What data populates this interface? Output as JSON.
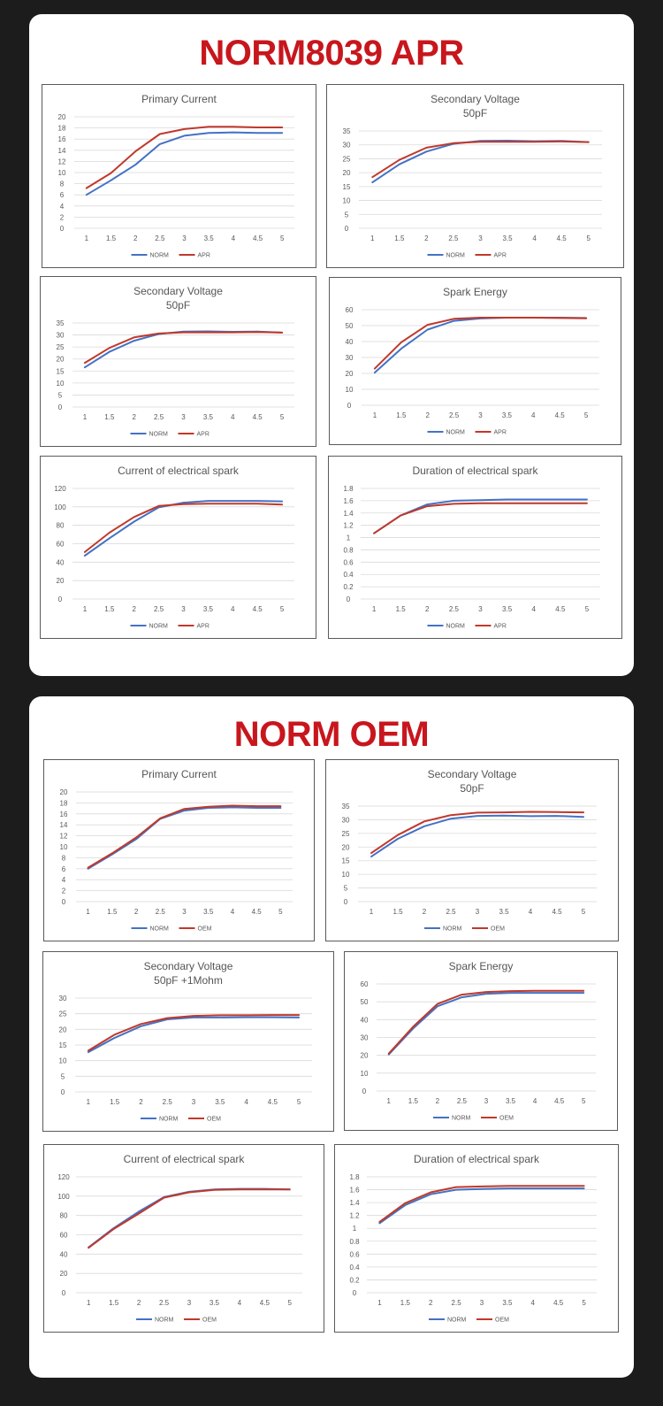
{
  "colors": {
    "norm": "#4472c4",
    "other": "#c0392b",
    "title": "#c8161d"
  },
  "sections": [
    {
      "title": "NORM8039 APR"
    },
    {
      "title": "NORM OEM"
    }
  ],
  "chart_data": [
    {
      "type": "line",
      "section": 0,
      "id": "s1-primary-current",
      "title": "Primary Current",
      "subtitle": "",
      "categories": [
        "1",
        "1.5",
        "2",
        "2.5",
        "3",
        "3.5",
        "4",
        "4.5",
        "5"
      ],
      "ylim": [
        0,
        20
      ],
      "ystep": 2,
      "ylabels": [
        "0",
        "2",
        "4",
        "6",
        "8",
        "10",
        "12",
        "14",
        "16",
        "18",
        "20"
      ],
      "series": [
        {
          "name": "NORM",
          "values": [
            6,
            8.6,
            11.4,
            15.1,
            16.6,
            17.1,
            17.2,
            17.1,
            17.1
          ]
        },
        {
          "name": "APR",
          "values": [
            7.2,
            9.9,
            13.8,
            16.9,
            17.8,
            18.2,
            18.2,
            18.1,
            18.1
          ]
        }
      ]
    },
    {
      "type": "line",
      "section": 0,
      "id": "s1-secondary-voltage-a",
      "title": "Secondary Voltage",
      "subtitle": "50pF",
      "categories": [
        "1",
        "1.5",
        "2",
        "2.5",
        "3",
        "3.5",
        "4",
        "4.5",
        "5"
      ],
      "ylim": [
        0,
        35
      ],
      "ystep": 5,
      "ylabels": [
        "0",
        "5",
        "10",
        "15",
        "20",
        "25",
        "30",
        "35"
      ],
      "series": [
        {
          "name": "NORM",
          "values": [
            16.5,
            23,
            27.6,
            30.4,
            31.4,
            31.5,
            31.3,
            31.4,
            31
          ]
        },
        {
          "name": "APR",
          "values": [
            18.4,
            24.6,
            29,
            30.6,
            31.1,
            31.1,
            31.1,
            31.2,
            31
          ]
        }
      ]
    },
    {
      "type": "line",
      "section": 0,
      "id": "s1-secondary-voltage-b",
      "title": "Secondary Voltage",
      "subtitle": "50pF",
      "categories": [
        "1",
        "1.5",
        "2",
        "2.5",
        "3",
        "3.5",
        "4",
        "4.5",
        "5"
      ],
      "ylim": [
        0,
        35
      ],
      "ystep": 5,
      "ylabels": [
        "0",
        "5",
        "10",
        "15",
        "20",
        "25",
        "30",
        "35"
      ],
      "series": [
        {
          "name": "NORM",
          "values": [
            16.5,
            23,
            27.6,
            30.4,
            31.4,
            31.5,
            31.3,
            31.4,
            31
          ]
        },
        {
          "name": "APR",
          "values": [
            18.4,
            24.6,
            29,
            30.6,
            31.1,
            31.1,
            31.1,
            31.2,
            31
          ]
        }
      ]
    },
    {
      "type": "line",
      "section": 0,
      "id": "s1-spark-energy",
      "title": "Spark Energy",
      "subtitle": "",
      "categories": [
        "1",
        "1.5",
        "2",
        "2.5",
        "3",
        "3.5",
        "4",
        "4.5",
        "5"
      ],
      "ylim": [
        0,
        60
      ],
      "ystep": 10,
      "ylabels": [
        "0",
        "10",
        "20",
        "30",
        "40",
        "50",
        "60"
      ],
      "series": [
        {
          "name": "NORM",
          "values": [
            20.5,
            35.5,
            47.5,
            53,
            54.5,
            55,
            55,
            55,
            54.8
          ]
        },
        {
          "name": "APR",
          "values": [
            23,
            39.5,
            50.5,
            54.3,
            55,
            55,
            55,
            54.8,
            54.6
          ]
        }
      ]
    },
    {
      "type": "line",
      "section": 0,
      "id": "s1-current-spark",
      "title": "Current of electrical spark",
      "subtitle": "",
      "categories": [
        "1",
        "1.5",
        "2",
        "2.5",
        "3",
        "3.5",
        "4",
        "4.5",
        "5"
      ],
      "ylim": [
        0,
        120
      ],
      "ystep": 20,
      "ylabels": [
        "0",
        "20",
        "40",
        "60",
        "80",
        "100",
        "120"
      ],
      "series": [
        {
          "name": "NORM",
          "values": [
            47,
            66,
            84,
            99.5,
            104.5,
            106.5,
            106.5,
            106.5,
            106
          ]
        },
        {
          "name": "APR",
          "values": [
            51,
            72,
            89,
            101,
            103,
            103.5,
            103.5,
            103.5,
            102.5
          ]
        }
      ]
    },
    {
      "type": "line",
      "section": 0,
      "id": "s1-duration-spark",
      "title": "Duration of electrical spark",
      "subtitle": "",
      "categories": [
        "1",
        "1.5",
        "2",
        "2.5",
        "3",
        "3.5",
        "4",
        "4.5",
        "5"
      ],
      "ylim": [
        0,
        1.8
      ],
      "ystep": 0.2,
      "ylabels": [
        "0",
        "0.2",
        "0.4",
        "0.6",
        "0.8",
        "1",
        "1.2",
        "1.4",
        "1.6",
        "1.8"
      ],
      "series": [
        {
          "name": "NORM",
          "values": [
            1.07,
            1.36,
            1.54,
            1.6,
            1.61,
            1.62,
            1.62,
            1.62,
            1.62
          ]
        },
        {
          "name": "APR",
          "values": [
            1.07,
            1.36,
            1.51,
            1.55,
            1.56,
            1.56,
            1.56,
            1.56,
            1.56
          ]
        }
      ]
    },
    {
      "type": "line",
      "section": 1,
      "id": "s2-primary-current",
      "title": "Primary Current",
      "subtitle": "",
      "categories": [
        "1",
        "1.5",
        "2",
        "2.5",
        "3",
        "3.5",
        "4",
        "4.5",
        "5"
      ],
      "ylim": [
        0,
        20
      ],
      "ystep": 2,
      "ylabels": [
        "0",
        "2",
        "4",
        "6",
        "8",
        "10",
        "12",
        "14",
        "16",
        "18",
        "20"
      ],
      "series": [
        {
          "name": "NORM",
          "values": [
            6,
            8.6,
            11.4,
            15.1,
            16.6,
            17.1,
            17.2,
            17.1,
            17.1
          ]
        },
        {
          "name": "OEM",
          "values": [
            6.2,
            8.8,
            11.7,
            15.2,
            16.9,
            17.3,
            17.5,
            17.4,
            17.4
          ]
        }
      ]
    },
    {
      "type": "line",
      "section": 1,
      "id": "s2-secondary-voltage",
      "title": "Secondary Voltage",
      "subtitle": "50pF",
      "categories": [
        "1",
        "1.5",
        "2",
        "2.5",
        "3",
        "3.5",
        "4",
        "4.5",
        "5"
      ],
      "ylim": [
        0,
        35
      ],
      "ystep": 5,
      "ylabels": [
        "0",
        "5",
        "10",
        "15",
        "20",
        "25",
        "30",
        "35"
      ],
      "series": [
        {
          "name": "NORM",
          "values": [
            16.5,
            23,
            27.6,
            30.4,
            31.4,
            31.5,
            31.3,
            31.4,
            31
          ]
        },
        {
          "name": "OEM",
          "values": [
            17.8,
            24.4,
            29.4,
            31.7,
            32.6,
            32.7,
            32.9,
            32.8,
            32.7
          ]
        }
      ]
    },
    {
      "type": "line",
      "section": 1,
      "id": "s2-secondary-voltage-1mohm",
      "title": "Secondary Voltage",
      "subtitle": "50pF +1Mohm",
      "categories": [
        "1",
        "1.5",
        "2",
        "2.5",
        "3",
        "3.5",
        "4",
        "4.5",
        "5"
      ],
      "ylim": [
        0,
        30
      ],
      "ystep": 5,
      "ylabels": [
        "0",
        "5",
        "10",
        "15",
        "20",
        "25",
        "30"
      ],
      "series": [
        {
          "name": "NORM",
          "values": [
            12.7,
            17.3,
            21,
            23.2,
            23.8,
            23.8,
            23.9,
            23.9,
            23.8
          ]
        },
        {
          "name": "OEM",
          "values": [
            13.2,
            18.3,
            21.7,
            23.6,
            24.3,
            24.5,
            24.5,
            24.6,
            24.6
          ]
        }
      ]
    },
    {
      "type": "line",
      "section": 1,
      "id": "s2-spark-energy",
      "title": "Spark Energy",
      "subtitle": "",
      "categories": [
        "1",
        "1.5",
        "2",
        "2.5",
        "3",
        "3.5",
        "4",
        "4.5",
        "5"
      ],
      "ylim": [
        0,
        60
      ],
      "ystep": 10,
      "ylabels": [
        "0",
        "10",
        "20",
        "30",
        "40",
        "50",
        "60"
      ],
      "series": [
        {
          "name": "NORM",
          "values": [
            20.5,
            35,
            47.5,
            52.5,
            54.5,
            55,
            55,
            55,
            55
          ]
        },
        {
          "name": "OEM",
          "values": [
            21,
            36,
            48.8,
            54,
            55.5,
            56,
            56.2,
            56.2,
            56.2
          ]
        }
      ]
    },
    {
      "type": "line",
      "section": 1,
      "id": "s2-current-spark",
      "title": "Current of electrical spark",
      "subtitle": "",
      "categories": [
        "1",
        "1.5",
        "2",
        "2.5",
        "3",
        "3.5",
        "4",
        "4.5",
        "5"
      ],
      "ylim": [
        0,
        120
      ],
      "ystep": 20,
      "ylabels": [
        "0",
        "20",
        "40",
        "60",
        "80",
        "100",
        "120"
      ],
      "series": [
        {
          "name": "NORM",
          "values": [
            47,
            67,
            84,
            99,
            104.5,
            107,
            107.5,
            107.5,
            107
          ]
        },
        {
          "name": "OEM",
          "values": [
            46.5,
            66,
            82,
            98.5,
            104,
            106.5,
            107,
            107,
            107
          ]
        }
      ]
    },
    {
      "type": "line",
      "section": 1,
      "id": "s2-duration-spark",
      "title": "Duration of electrical spark",
      "subtitle": "",
      "categories": [
        "1",
        "1.5",
        "2",
        "2.5",
        "3",
        "3.5",
        "4",
        "4.5",
        "5"
      ],
      "ylim": [
        0,
        1.8
      ],
      "ystep": 0.2,
      "ylabels": [
        "0",
        "0.2",
        "0.4",
        "0.6",
        "0.8",
        "1",
        "1.2",
        "1.4",
        "1.6",
        "1.8"
      ],
      "series": [
        {
          "name": "NORM",
          "values": [
            1.08,
            1.36,
            1.53,
            1.6,
            1.61,
            1.62,
            1.62,
            1.62,
            1.62
          ]
        },
        {
          "name": "OEM",
          "values": [
            1.1,
            1.39,
            1.56,
            1.64,
            1.65,
            1.66,
            1.66,
            1.66,
            1.66
          ]
        }
      ]
    }
  ]
}
